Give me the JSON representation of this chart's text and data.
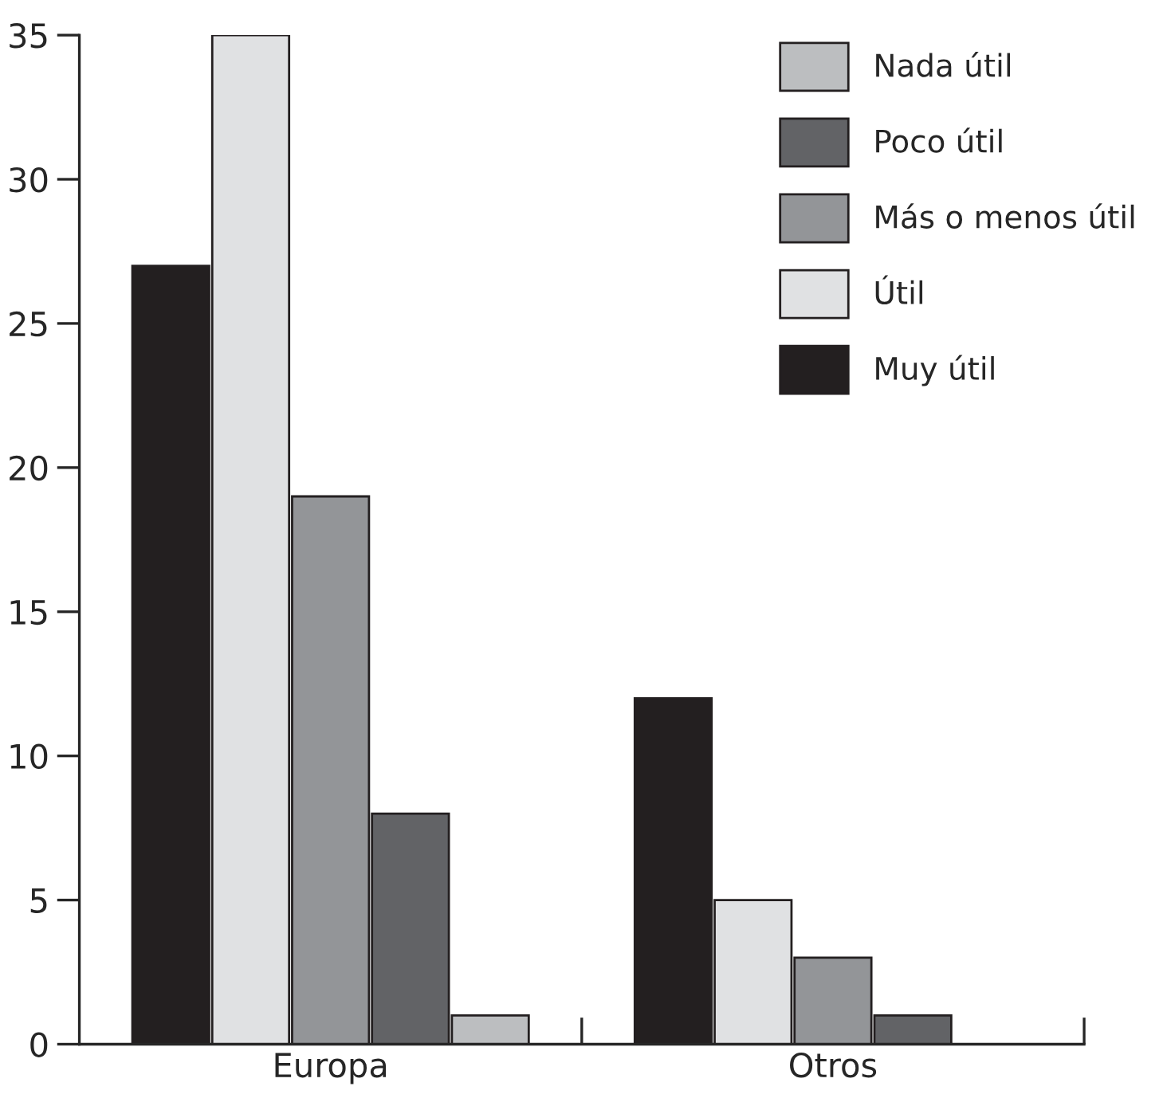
{
  "chart_data": {
    "type": "bar",
    "categories": [
      "Europa",
      "Otros"
    ],
    "series": [
      {
        "name": "Muy útil",
        "color": "#231f20",
        "values": [
          27,
          12
        ]
      },
      {
        "name": "Útil",
        "color": "#e0e1e3",
        "values": [
          35,
          5
        ]
      },
      {
        "name": "Más o menos útil",
        "color": "#939598",
        "values": [
          19,
          3
        ]
      },
      {
        "name": "Poco útil",
        "color": "#626366",
        "values": [
          8,
          1
        ]
      },
      {
        "name": "Nada útil",
        "color": "#bcbec0",
        "values": [
          1,
          0
        ]
      }
    ],
    "ylim": [
      0,
      35
    ],
    "yticks": [
      0,
      5,
      10,
      15,
      20,
      25,
      30,
      35
    ],
    "grid": false,
    "legend": "top right"
  }
}
